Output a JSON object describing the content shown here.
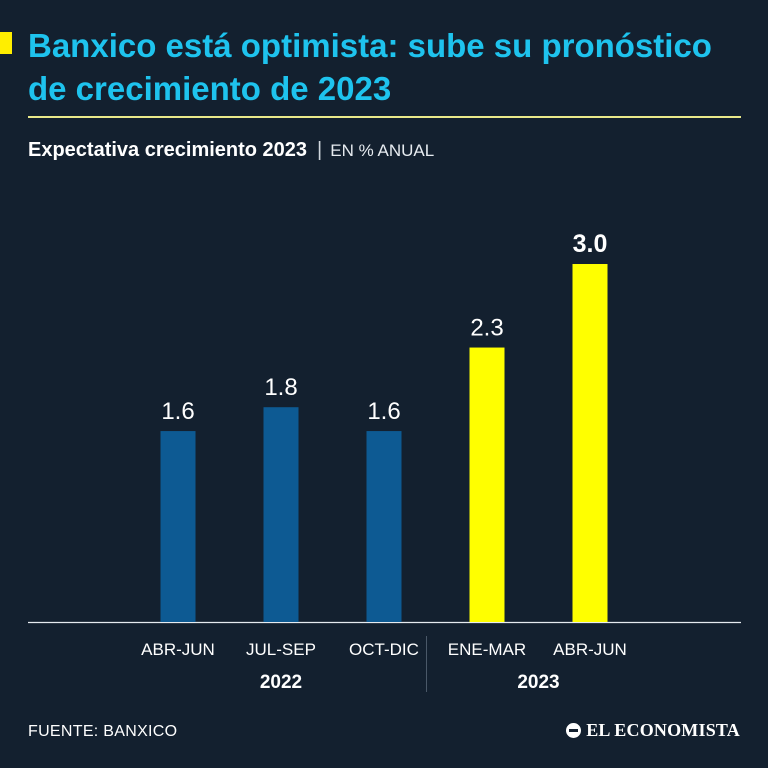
{
  "headline": "Banxico está optimista: sube su pronóstico de crecimiento de 2023",
  "subtitle": {
    "main": "Expectativa crecimiento 2023",
    "separator": "|",
    "unit": "EN % ANUAL"
  },
  "colors": {
    "background": "#13202f",
    "headline": "#1ec3ee",
    "bar_2022": "#0d5a93",
    "bar_2023": "#ffff00",
    "accent": "#ffee00"
  },
  "chart_data": {
    "type": "bar",
    "title": "Expectativa crecimiento 2023",
    "ylabel": "EN % ANUAL",
    "xlabel": "",
    "categories": [
      "ABR-JUN",
      "JUL-SEP",
      "OCT-DIC",
      "ENE-MAR",
      "ABR-JUN"
    ],
    "values": [
      1.6,
      1.8,
      1.6,
      2.3,
      3.0
    ],
    "value_labels": [
      "1.6",
      "1.8",
      "1.6",
      "2.3",
      "3.0"
    ],
    "year_groups": [
      {
        "label": "2022",
        "start": 0,
        "end": 2
      },
      {
        "label": "2023",
        "start": 3,
        "end": 4
      }
    ],
    "highlight_last": true,
    "ylim": [
      0,
      3.0
    ],
    "grid": false,
    "legend": "none"
  },
  "footer": {
    "source": "FUENTE: BANXICO",
    "brand": "EL ECONOMISTA",
    "brand_icon": "el-economista-logo-icon"
  }
}
